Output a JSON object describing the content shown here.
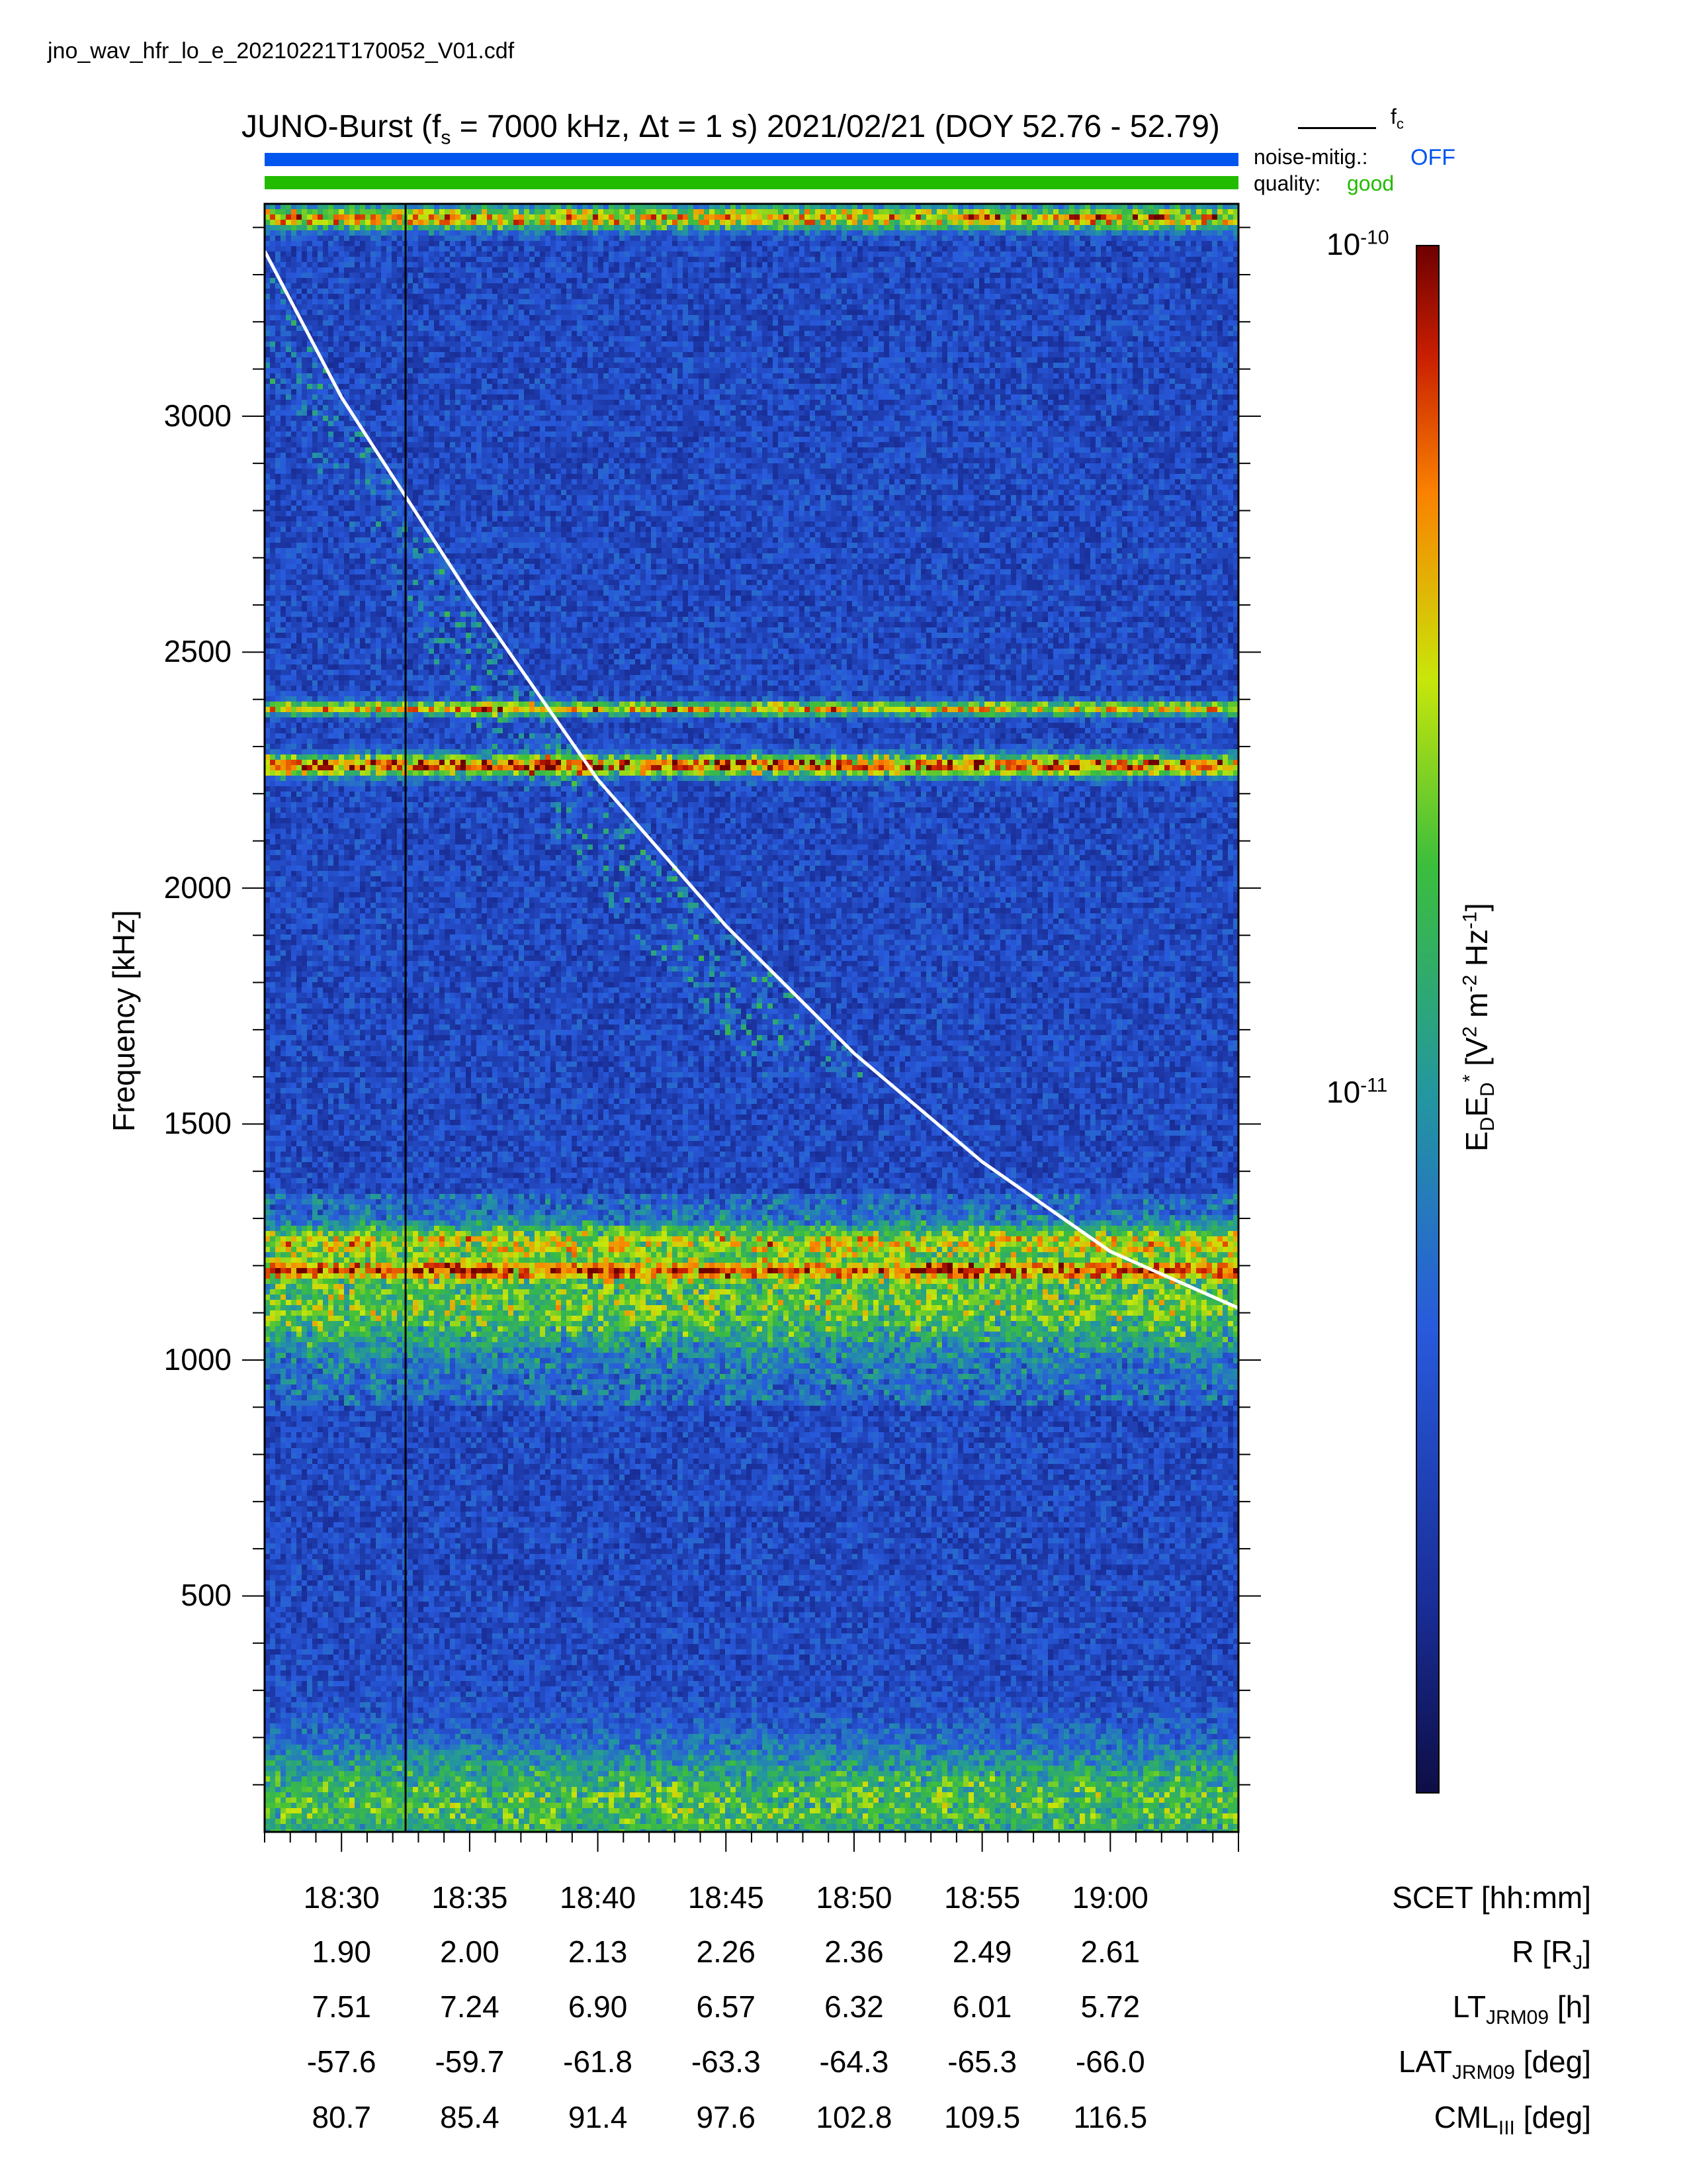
{
  "filename": "jno_wav_hfr_lo_e_20210221T170052_V01.cdf",
  "title": {
    "prefix": "JUNO-Burst (f",
    "sub": "s",
    "middle": " = 7000 kHz, Δt = 1 s)  2021/02/21 (DOY 52.76 - 52.79)"
  },
  "legend": {
    "fc_label": "f",
    "fc_sub": "c",
    "noise_label": "noise-mitig.:",
    "noise_value": "OFF",
    "quality_label": "quality:",
    "quality_value": "good",
    "noise_color": "#0055ee",
    "quality_color": "#22bb00"
  },
  "chart_data": {
    "type": "heatmap",
    "title": "JUNO-Burst (fs = 7000 kHz, Δt = 1 s)  2021/02/21 (DOY 52.76 - 52.79)",
    "ylabel": "Frequency [kHz]",
    "ylim": [
      0,
      3450
    ],
    "xlim": [
      "18:27",
      "19:05"
    ],
    "yticks": [
      500,
      1000,
      1500,
      2000,
      2500,
      3000
    ],
    "yticklabels": [
      "500",
      "1000",
      "1500",
      "2000",
      "2500",
      "3000"
    ],
    "xticks": [
      "18:30",
      "18:35",
      "18:40",
      "18:45",
      "18:50",
      "18:55",
      "19:00"
    ],
    "vertical_line_time": "18:32.5",
    "fc_curve": [
      {
        "t": "18:27",
        "f": 3350
      },
      {
        "t": "18:30",
        "f": 3040
      },
      {
        "t": "18:35",
        "f": 2620
      },
      {
        "t": "18:40",
        "f": 2230
      },
      {
        "t": "18:45",
        "f": 1920
      },
      {
        "t": "18:50",
        "f": 1650
      },
      {
        "t": "18:55",
        "f": 1420
      },
      {
        "t": "19:00",
        "f": 1230
      },
      {
        "t": "19:05",
        "f": 1110
      }
    ],
    "horizontal_bands_khz": [
      3420,
      2380,
      2260,
      1250,
      1190,
      1120,
      90
    ],
    "colorbar": {
      "scale": "log",
      "range": [
        1.5e-12,
        1e-10
      ],
      "ticks": [
        {
          "value": 1e-10,
          "base": "10",
          "exp": "-10"
        },
        {
          "value": 1e-11,
          "base": "10",
          "exp": "-11"
        }
      ],
      "label_main": "E",
      "label_sub1": "D",
      "label_e2": "E",
      "label_sub2": "D",
      "label_sup2": "*",
      "label_rest": " [V",
      "label_sup3": "2",
      "label_rest2": " m",
      "label_sup4": "-2",
      "label_rest3": " Hz",
      "label_sup5": "-1",
      "label_end": "]"
    },
    "ephemeris": {
      "rows": [
        {
          "label": "SCET [hh:mm]",
          "values": [
            "18:30",
            "18:35",
            "18:40",
            "18:45",
            "18:50",
            "18:55",
            "19:00"
          ]
        },
        {
          "label": "R [R",
          "sub": "J",
          "tail": "]",
          "values": [
            "1.90",
            "2.00",
            "2.13",
            "2.26",
            "2.36",
            "2.49",
            "2.61"
          ]
        },
        {
          "label": "LT",
          "sub": "JRM09",
          "tail": " [h]",
          "values": [
            "7.51",
            "7.24",
            "6.90",
            "6.57",
            "6.32",
            "6.01",
            "5.72"
          ]
        },
        {
          "label": "LAT",
          "sub": "JRM09",
          "tail": " [deg]",
          "values": [
            "-57.6",
            "-59.7",
            "-61.8",
            "-63.3",
            "-64.3",
            "-65.3",
            "-66.0"
          ]
        },
        {
          "label": "CML",
          "sub": "III",
          "tail": " [deg]",
          "values": [
            "80.7",
            "85.4",
            "91.4",
            "97.6",
            "102.8",
            "109.5",
            "116.5"
          ]
        }
      ]
    }
  }
}
